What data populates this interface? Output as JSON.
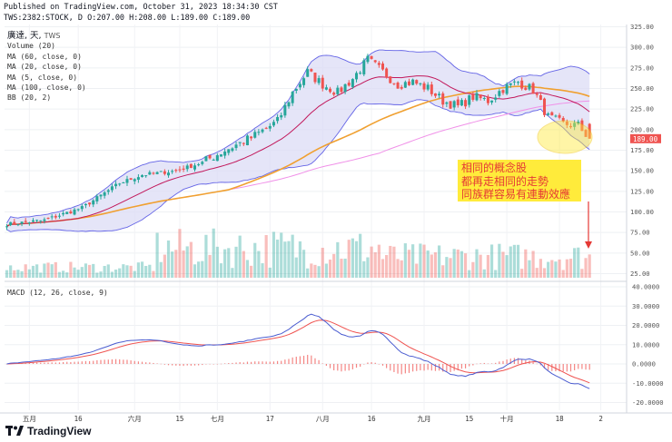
{
  "header": {
    "published": "Published on TradingView.com, October 31, 2023 18:34:30 CST",
    "ticker_line": "TWS:2382:STOCK, D O:207.00 H:208.00 L:189.00 C:189.00"
  },
  "legend": {
    "title": "廣達, 天,",
    "exchange": "TWS",
    "items": [
      "Volume (20)",
      "MA (60, close, 0)",
      "MA (20, close, 0)",
      "MA (5, close, 0)",
      "MA (100, close, 0)",
      "BB (20, 2)"
    ]
  },
  "macd_legend": "MACD (12, 26, close, 9)",
  "annotation": {
    "lines": [
      "相同的概念股",
      "都再走相同的走勢",
      "同族群容易有連動效應"
    ]
  },
  "brand": "TradingView",
  "last_price": "189.00",
  "colors": {
    "up": "#26a69a",
    "down": "#ef5350",
    "bb_fill": "#dcdcf5",
    "bb_line": "#6464e6",
    "ma5": "#e080e0",
    "ma20": "#c2185b",
    "ma60": "#f0a030",
    "ma100": "#f090e8",
    "macd": "#4a5cd0",
    "signal": "#ef5350",
    "arrow": "#e53935",
    "note_bg": "#ffeb3b"
  },
  "chart_data": [
    {
      "type": "candlestick",
      "title": "廣達, 天, TWS",
      "ylim": [
        0,
        330
      ],
      "y_ticks": [
        25,
        50,
        75,
        100,
        125,
        150,
        175,
        200,
        225,
        250,
        275,
        300,
        325
      ],
      "y_tick_labels": [
        "25.00",
        "50.00",
        "75.00",
        "100.00",
        "125.00",
        "150.00",
        "175.00",
        "200.00",
        "225.00",
        "250.00",
        "275.00",
        "300.00",
        "325.00"
      ],
      "x_tick_labels": [
        "五月",
        "16",
        "六月",
        "15",
        "七月",
        "17",
        "八月",
        "16",
        "九月",
        "15",
        "十月",
        "18",
        "2"
      ],
      "x_tick_index": [
        6,
        19,
        34,
        46,
        56,
        70,
        84,
        97,
        111,
        123,
        133,
        147,
        158
      ],
      "candle_count": 156,
      "anchors": [
        [
          0,
          85
        ],
        [
          10,
          90
        ],
        [
          20,
          105
        ],
        [
          30,
          135
        ],
        [
          36,
          145
        ],
        [
          45,
          150
        ],
        [
          52,
          160
        ],
        [
          58,
          175
        ],
        [
          65,
          190
        ],
        [
          72,
          210
        ],
        [
          76,
          245
        ],
        [
          80,
          270
        ],
        [
          84,
          255
        ],
        [
          88,
          245
        ],
        [
          92,
          262
        ],
        [
          96,
          285
        ],
        [
          100,
          270
        ],
        [
          104,
          255
        ],
        [
          108,
          258
        ],
        [
          112,
          250
        ],
        [
          116,
          235
        ],
        [
          120,
          228
        ],
        [
          124,
          240
        ],
        [
          128,
          235
        ],
        [
          132,
          250
        ],
        [
          136,
          258
        ],
        [
          140,
          248
        ],
        [
          144,
          215
        ],
        [
          148,
          207
        ],
        [
          152,
          205
        ],
        [
          155,
          189
        ]
      ],
      "last_candle": {
        "open": 207.0,
        "high": 208.0,
        "low": 189.0,
        "close": 189.0
      }
    },
    {
      "type": "bar",
      "title": "Volume (20)",
      "ylim": [
        0,
        110
      ],
      "y_ticks": [
        25,
        50,
        75,
        100
      ],
      "y_tick_labels": [
        "25.00",
        "50.00",
        "75.00",
        "100.00"
      ],
      "range": [
        2,
        95
      ]
    },
    {
      "type": "line",
      "title": "MACD (12, 26, close, 9)",
      "ylim": [
        -27,
        42
      ],
      "y_ticks": [
        -20,
        -10,
        0,
        10,
        20,
        30,
        40
      ],
      "y_tick_labels": [
        "-20.0000",
        "-10.0000",
        "0.0000",
        "10.0000",
        "20.0000",
        "30.0000",
        "40.0000"
      ],
      "series": [
        {
          "name": "MACD"
        },
        {
          "name": "Signal"
        },
        {
          "name": "Histogram"
        }
      ]
    }
  ]
}
